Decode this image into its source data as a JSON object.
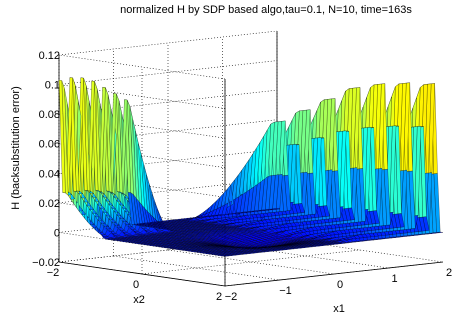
{
  "chart_data": {
    "type": "surface",
    "title": "normalized H by SDP based algo,tau=0.1, N=10, time=163s",
    "xlabel": "x1",
    "ylabel": "x2",
    "zlabel": "H (backsubstitution error)",
    "xlim": [
      -2,
      2
    ],
    "ylim": [
      -2,
      2
    ],
    "zlim": [
      -0.02,
      0.12
    ],
    "x_ticks": [
      "−2",
      "−1",
      "0",
      "1",
      "2"
    ],
    "y_ticks": [
      "−2",
      "0",
      "2"
    ],
    "z_ticks": [
      "−0.02",
      "0",
      "0.02",
      "0.04",
      "0.06",
      "0.08",
      "0.1",
      "0.12"
    ],
    "grid": true,
    "colormap": "jet",
    "ridges_near_x2_max": {
      "x1": [
        -2.0,
        -1.8,
        -1.6,
        -1.4,
        -1.2,
        -1.0,
        -0.8
      ],
      "peak_H": [
        0.103,
        0.104,
        0.103,
        0.1,
        0.095,
        0.09,
        0.085
      ]
    },
    "ridges_near_x1_max": {
      "x2": [
        1.8,
        1.5,
        1.2,
        0.9,
        0.6,
        0.3,
        0.0,
        -0.3,
        -0.6,
        -0.9,
        -1.2,
        -1.5,
        -1.8
      ],
      "peak_H": [
        0.06,
        0.065,
        0.07,
        0.075,
        0.08,
        0.085,
        0.09,
        0.092,
        0.095,
        0.097,
        0.098,
        0.1,
        0.1
      ]
    }
  }
}
